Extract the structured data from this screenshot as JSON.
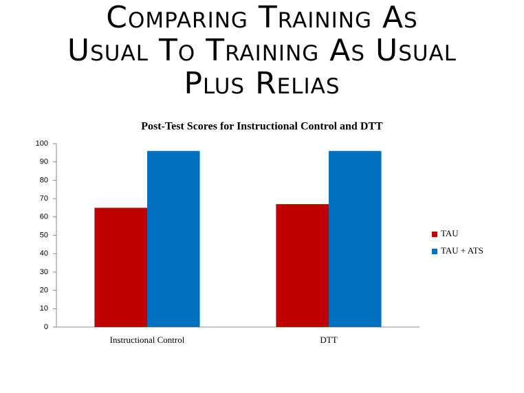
{
  "slide": {
    "title": [
      "Comparing Training As",
      "Usual To Training As Usual",
      "Plus Relias"
    ]
  },
  "chart_data": {
    "type": "bar",
    "title": "Post-Test Scores for Instructional  Control and DTT",
    "categories": [
      "Instructional Control",
      "DTT"
    ],
    "series": [
      {
        "name": "TAU",
        "color": "#c00000",
        "values": [
          65,
          67
        ]
      },
      {
        "name": "TAU + ATS",
        "color": "#0070c0",
        "values": [
          96,
          96
        ]
      }
    ],
    "ylim": [
      0,
      100
    ],
    "yticks": [
      0,
      10,
      20,
      30,
      40,
      50,
      60,
      70,
      80,
      90,
      100
    ],
    "grid": false,
    "legend": "right"
  }
}
